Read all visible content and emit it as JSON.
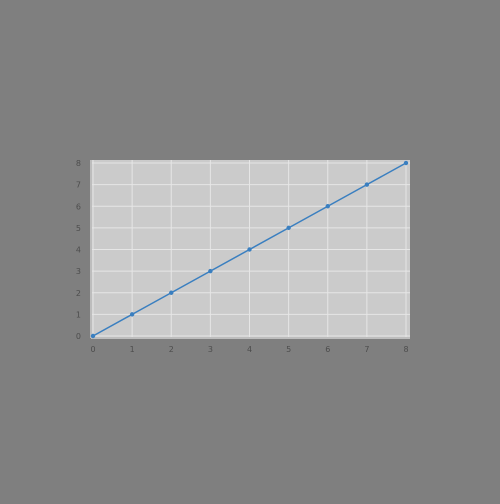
{
  "chart_data": {
    "type": "line",
    "title": "",
    "xlabel": "",
    "ylabel": "",
    "xlim": [
      0,
      8
    ],
    "ylim": [
      0,
      8
    ],
    "x_ticks": [
      "0",
      "1",
      "2",
      "3",
      "4",
      "5",
      "6",
      "7",
      "8"
    ],
    "y_ticks": [
      "0",
      "1",
      "2",
      "3",
      "4",
      "5",
      "6",
      "7",
      "8"
    ],
    "grid": true,
    "legend": "none",
    "series": [
      {
        "x": [
          0,
          1,
          2,
          3,
          4,
          5,
          6,
          7,
          8
        ],
        "y": [
          0,
          1,
          2,
          3,
          4,
          5,
          6,
          7,
          8
        ],
        "color": "#3a7fc0",
        "marker": "dot"
      }
    ]
  },
  "colors": {
    "page_background": "#7f7f7f",
    "plot_background": "#cbcbcb",
    "grid": "#e6e6e6",
    "axis": "#bdbdbd",
    "tick_label": "#4d4d4d",
    "line": "#3a7fc0"
  }
}
